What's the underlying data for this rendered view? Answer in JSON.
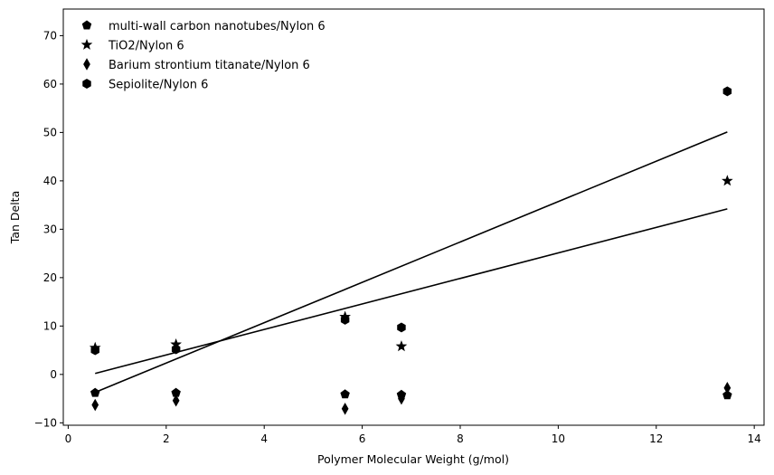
{
  "chart_data": {
    "type": "scatter",
    "title": "",
    "xlabel": "Polymer Molecular Weight (g/mol)",
    "ylabel": "Tan Delta",
    "xlim": [
      -0.1,
      14.2
    ],
    "ylim": [
      -10.5,
      75.5
    ],
    "xticks": [
      0,
      2,
      4,
      6,
      8,
      10,
      12,
      14
    ],
    "yticks": [
      -10,
      0,
      10,
      20,
      30,
      40,
      50,
      60,
      70
    ],
    "grid": false,
    "legend_position": "top-left",
    "color": "#000000",
    "series": [
      {
        "name": "multi-wall carbon nanotubes/Nylon 6",
        "marker": "pentagon",
        "x": [
          0.55,
          2.2,
          5.65,
          6.8,
          13.45
        ],
        "y": [
          -3.8,
          -3.8,
          -4.1,
          -4.2,
          -4.3
        ]
      },
      {
        "name": "TiO2/Nylon 6",
        "marker": "star",
        "x": [
          0.55,
          2.2,
          5.65,
          6.8,
          13.45
        ],
        "y": [
          5.5,
          6.2,
          11.9,
          5.8,
          40.0
        ]
      },
      {
        "name": "Barium strontium titanate/Nylon 6",
        "marker": "thin-diamond",
        "x": [
          0.55,
          2.2,
          5.65,
          6.8,
          13.45
        ],
        "y": [
          -6.3,
          -5.4,
          -7.1,
          -5.0,
          -2.8
        ]
      },
      {
        "name": "Sepiolite/Nylon 6",
        "marker": "hexagon",
        "x": [
          0.55,
          2.2,
          5.65,
          6.8,
          13.45
        ],
        "y": [
          5.0,
          5.2,
          11.3,
          9.7,
          58.5
        ]
      }
    ],
    "fit_lines": [
      {
        "x": [
          0.55,
          13.45
        ],
        "y": [
          0.2,
          34.2
        ]
      },
      {
        "x": [
          0.55,
          13.45
        ],
        "y": [
          -3.7,
          50.1
        ]
      }
    ]
  }
}
